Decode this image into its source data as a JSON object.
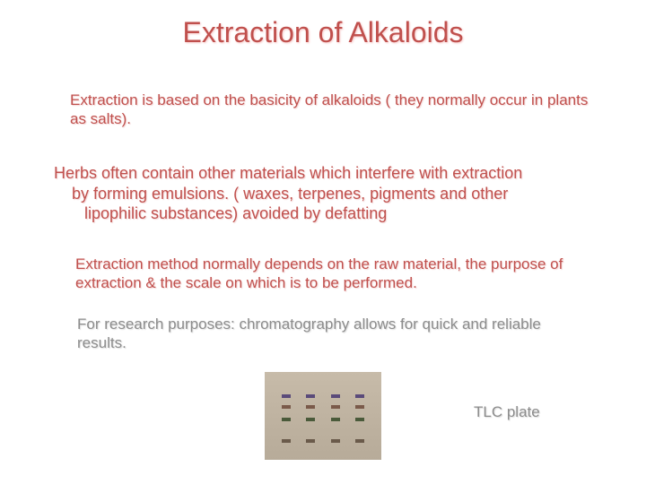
{
  "title": "Extraction of Alkaloids",
  "paragraphs": {
    "p1": "Extraction is based on the basicity of alkaloids ( they normally occur in plants as salts).",
    "p2_line1": "Herbs often contain other materials    which interfere with extraction",
    "p2_line2": "by forming emulsions. ( waxes, terpenes, pigments and other",
    "p2_line3": "lipophilic substances) avoided by defatting",
    "p3": "Extraction method normally depends on the raw material, the purpose of extraction & the scale on which is to be performed.",
    "p4": "For research purposes:  chromatography allows for quick and reliable results."
  },
  "image_label": "TLC plate",
  "colors": {
    "title": "#c0504d",
    "body_main": "#c0504d",
    "body_gray": "#8c8c8c",
    "background": "#ffffff"
  },
  "typography": {
    "title_fontsize": 32,
    "body_fontsize": 17,
    "font_family": "Arial"
  },
  "tlc_image": {
    "type": "photo",
    "width": 130,
    "height": 98,
    "background_gradient": [
      "#c7bba9",
      "#b7ab99"
    ],
    "lanes": 4,
    "band_colors": [
      "#5a4a7a",
      "#7a5a4a",
      "#4a5a3a",
      "#6a5a4a"
    ]
  }
}
